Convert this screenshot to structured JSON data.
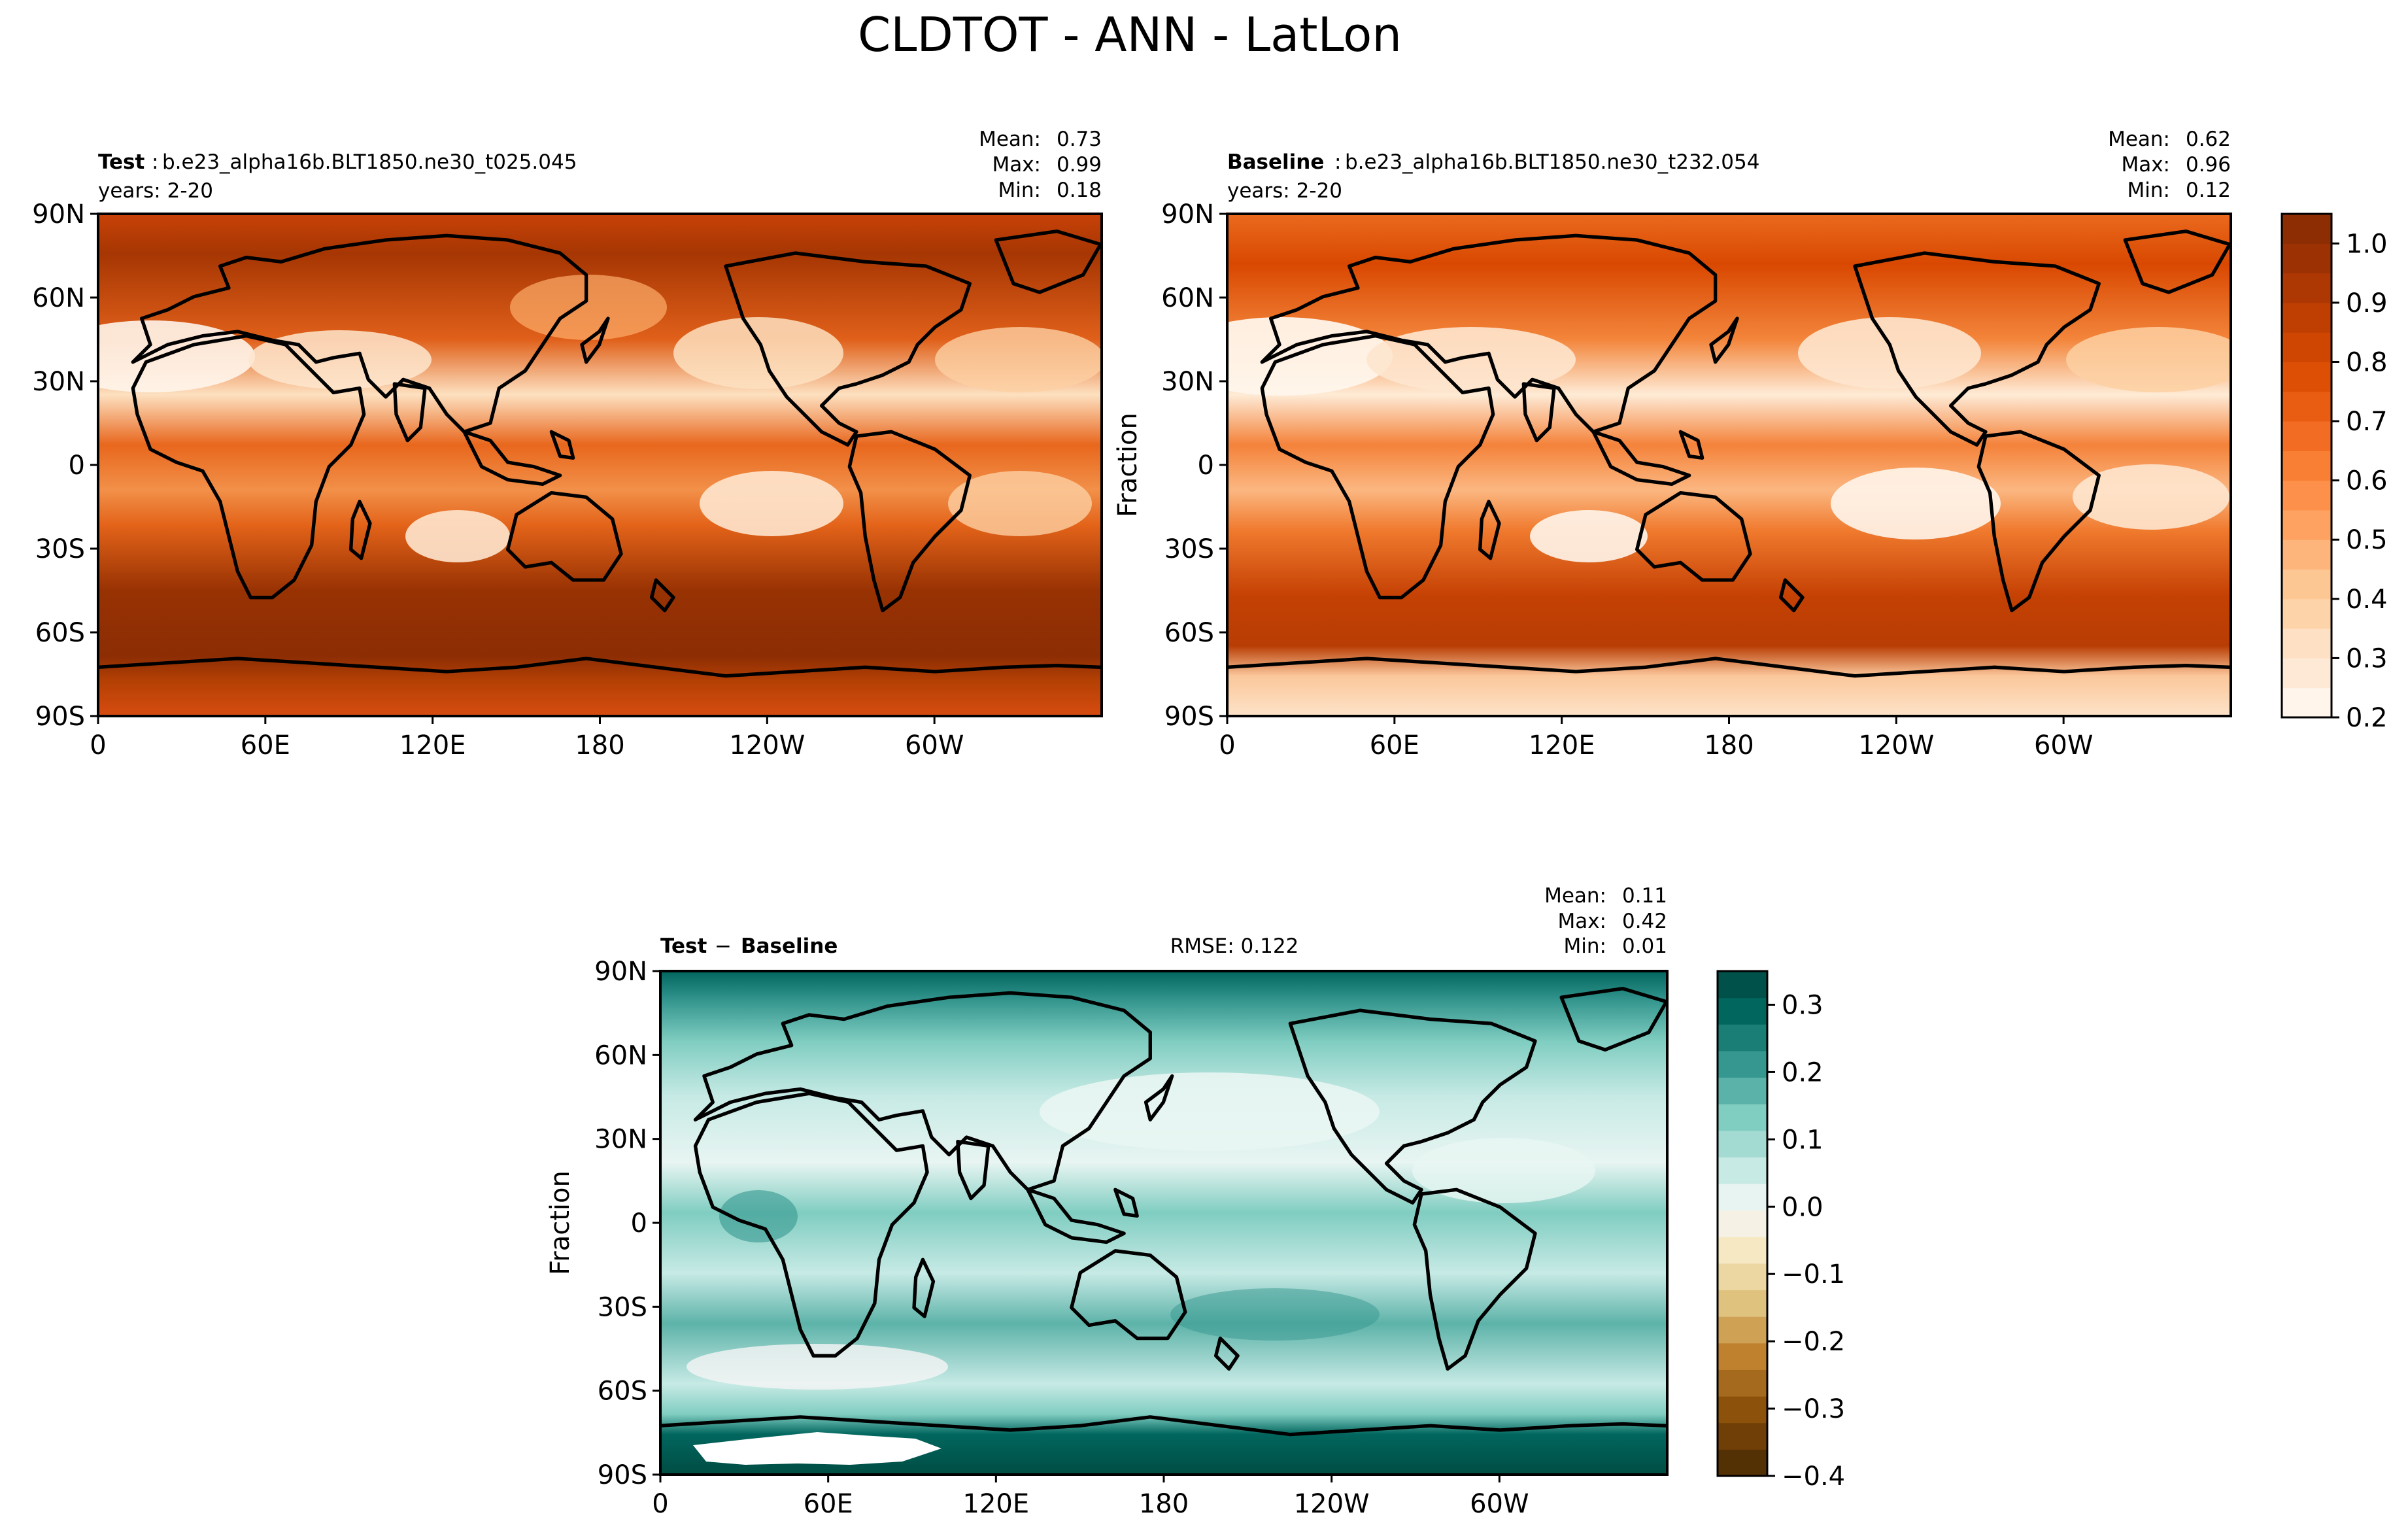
{
  "figure_title": "CLDTOT - ANN - LatLon",
  "chart_data": [
    {
      "type": "heatmap",
      "panel": "test",
      "label_bold": "Test",
      "case_name": "b.e23_alpha16b.BLT1850.ne30_t025.045",
      "years": "years: 2-20",
      "stats": {
        "mean_label": "Mean:",
        "mean": "0.73",
        "max_label": "Max:",
        "max": "0.99",
        "min_label": "Min:",
        "min": "0.18"
      },
      "ylabel": "",
      "x_ticks": [
        "0",
        "60E",
        "120E",
        "180",
        "120W",
        "60W"
      ],
      "y_ticks": [
        "90N",
        "60N",
        "30N",
        "0",
        "30S",
        "60S",
        "90S"
      ],
      "xlim": [
        0,
        360
      ],
      "ylim": [
        -90,
        90
      ],
      "variable": "CLDTOT",
      "units": "Fraction",
      "value_range": [
        0.18,
        0.99
      ]
    },
    {
      "type": "heatmap",
      "panel": "baseline",
      "label_bold": "Baseline",
      "case_name": "b.e23_alpha16b.BLT1850.ne30_t232.054",
      "years": "years: 2-20",
      "stats": {
        "mean_label": "Mean:",
        "mean": "0.62",
        "max_label": "Max:",
        "max": "0.96",
        "min_label": "Min:",
        "min": "0.12"
      },
      "ylabel": "Fraction",
      "x_ticks": [
        "0",
        "60E",
        "120E",
        "180",
        "120W",
        "60W"
      ],
      "y_ticks": [
        "90N",
        "60N",
        "30N",
        "0",
        "30S",
        "60S",
        "90S"
      ],
      "xlim": [
        0,
        360
      ],
      "ylim": [
        -90,
        90
      ],
      "colorbar": {
        "ticks": [
          "0.2",
          "0.3",
          "0.4",
          "0.5",
          "0.6",
          "0.7",
          "0.8",
          "0.9",
          "1.0"
        ],
        "range": [
          0.2,
          1.05
        ],
        "colormap": "Oranges"
      },
      "value_range": [
        0.12,
        0.96
      ]
    },
    {
      "type": "heatmap",
      "panel": "difference",
      "label_bold": "Test",
      "label_op": "−",
      "label_bold2": "Baseline",
      "rmse": "RMSE: 0.122",
      "stats": {
        "mean_label": "Mean:",
        "mean": "0.11",
        "max_label": "Max:",
        "max": "0.42",
        "min_label": "Min:",
        "min": "0.01"
      },
      "ylabel": "Fraction",
      "x_ticks": [
        "0",
        "60E",
        "120E",
        "180",
        "120W",
        "60W"
      ],
      "y_ticks": [
        "90N",
        "60N",
        "30N",
        "0",
        "30S",
        "60S",
        "90S"
      ],
      "xlim": [
        0,
        360
      ],
      "ylim": [
        -90,
        90
      ],
      "colorbar": {
        "ticks": [
          "0.3",
          "0.2",
          "0.1",
          "0.0",
          "−0.1",
          "−0.2",
          "−0.3",
          "−0.4"
        ],
        "range": [
          -0.4,
          0.35
        ],
        "colormap": "BrBG"
      },
      "value_range": [
        0.01,
        0.42
      ]
    }
  ],
  "colors": {
    "orange_scale": [
      "#fff5eb",
      "#fee6ce",
      "#fdd0a2",
      "#fdae6b",
      "#fd8d3c",
      "#f16913",
      "#d94801",
      "#a63603",
      "#8c2d04"
    ],
    "brbg_pos": [
      "#f5f5f5",
      "#c7eae5",
      "#80cdc1",
      "#35978f",
      "#01665e",
      "#003c30"
    ],
    "brbg_neg": [
      "#f6e8c3",
      "#dfc27d",
      "#bf812d",
      "#8c510a",
      "#543005"
    ]
  }
}
